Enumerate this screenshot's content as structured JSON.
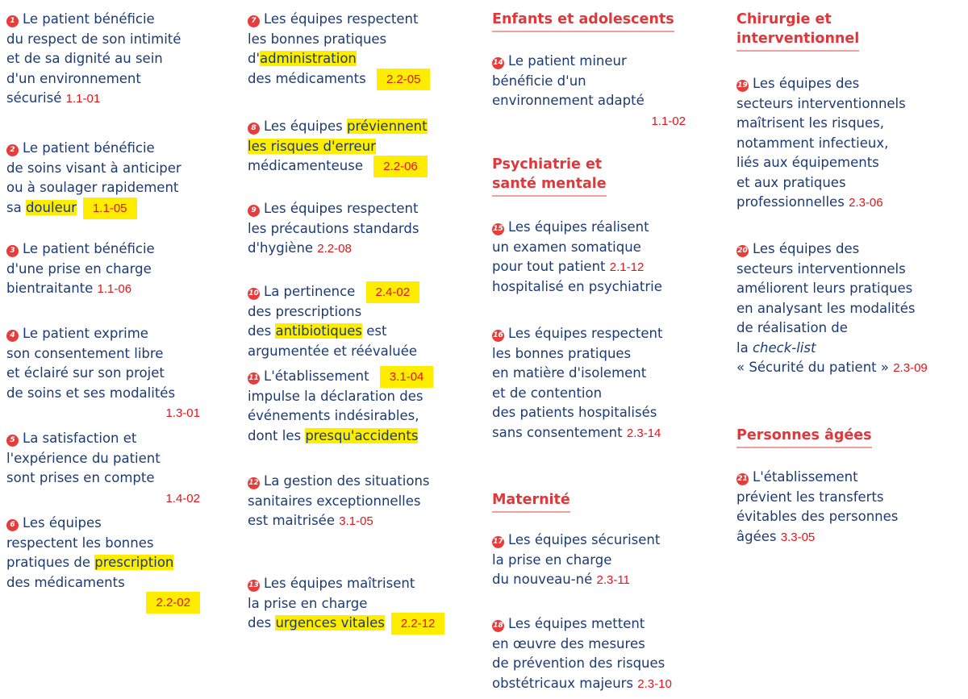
{
  "columns": [
    {
      "blocks": [
        {
          "number": "1",
          "lines": [
            [
              "Le patient bénéficie"
            ],
            [
              "du respect de son intimité"
            ],
            [
              "et de sa dignité au sein"
            ],
            [
              "d'un environnement"
            ],
            [
              "sécurisé ",
              {
                "text": "1.1-01",
                "style": "code"
              }
            ]
          ]
        },
        {
          "number": "2",
          "lines": [
            [
              "Le patient bénéficie"
            ],
            [
              "de soins visant à anticiper"
            ],
            [
              "ou à soulager rapidement"
            ],
            [
              "sa ",
              {
                "text": "douleur",
                "style": "hl"
              },
              {
                "text": "1.1-05",
                "style": "code-hl"
              }
            ]
          ]
        },
        {
          "number": "3",
          "lines": [
            [
              "Le patient bénéficie"
            ],
            [
              "d'une prise en charge"
            ],
            [
              "bientraitante ",
              {
                "text": "1.1-06",
                "style": "code"
              }
            ]
          ]
        },
        {
          "number": "4",
          "lines": [
            [
              "Le patient exprime"
            ],
            [
              "son consentement libre"
            ],
            [
              "et éclairé sur son projet"
            ],
            [
              "de soins et ses modalités"
            ],
            [
              {
                "text": "1.3-01",
                "style": "code"
              }
            ]
          ]
        },
        {
          "number": "5",
          "lines": [
            [
              "La satisfaction et"
            ],
            [
              "l'expérience du patient"
            ],
            [
              "sont prises en compte"
            ],
            [
              {
                "text": "1.4-02",
                "style": "code"
              }
            ]
          ]
        },
        {
          "number": "6",
          "lines": [
            [
              "Les équipes"
            ],
            [
              "respectent les bonnes"
            ],
            [
              "pratiques de ",
              {
                "text": "prescription",
                "style": "hl"
              }
            ],
            [
              "des médicaments"
            ],
            [
              {
                "text": "2.2-02",
                "style": "code-hl"
              }
            ]
          ]
        }
      ]
    },
    {
      "blocks": [
        {
          "number": "7",
          "lines": [
            [
              "Les équipes respectent"
            ],
            [
              "les bonnes pratiques"
            ],
            [
              "d'",
              {
                "text": "administration",
                "style": "hl"
              }
            ],
            [
              "des médicaments ",
              {
                "text": "2.2-05",
                "style": "code-hl"
              }
            ]
          ]
        },
        {
          "number": "8",
          "lines": [
            [
              "Les équipes ",
              {
                "text": "préviennent",
                "style": "hl"
              }
            ],
            [
              {
                "text": "les risques d'erreur",
                "style": "hl"
              }
            ],
            [
              "médicamenteuse ",
              {
                "text": "2.2-06",
                "style": "code-hl"
              }
            ]
          ]
        },
        {
          "number": "9",
          "lines": [
            [
              "Les équipes respectent"
            ],
            [
              "les précautions standards"
            ],
            [
              "d'hygiène ",
              {
                "text": "2.2-08",
                "style": "code"
              }
            ]
          ]
        },
        {
          "number": "10",
          "lines": [
            [
              "La pertinence ",
              {
                "text": "2.4-02",
                "style": "code-hl"
              }
            ],
            [
              "des prescriptions"
            ],
            [
              "des ",
              {
                "text": "antibiotiques",
                "style": "hl"
              },
              " est"
            ],
            [
              "argumentée et réévaluée"
            ]
          ]
        },
        {
          "number": "11",
          "lines": [
            [
              "L'établissement ",
              {
                "text": "3.1-04",
                "style": "code-hl"
              }
            ],
            [
              "impulse la déclaration des"
            ],
            [
              "événements indésirables,"
            ],
            [
              "dont les ",
              {
                "text": "presqu'accidents",
                "style": "hl"
              }
            ]
          ]
        },
        {
          "number": "12",
          "lines": [
            [
              "La gestion des situations"
            ],
            [
              "sanitaires exceptionnelles"
            ],
            [
              "est maitrisée ",
              {
                "text": "3.1-05",
                "style": "code"
              }
            ]
          ]
        },
        {
          "number": "13",
          "lines": [
            [
              "Les équipes maîtrisent"
            ],
            [
              "la prise en charge"
            ],
            [
              "des ",
              {
                "text": "urgences vitales",
                "style": "hl"
              },
              {
                "text": "2.2-12",
                "style": "code-hl"
              }
            ]
          ]
        }
      ]
    },
    {
      "blocks": [
        {
          "heading": [
            "Enfants et adolescents"
          ]
        },
        {
          "number": "14",
          "lines": [
            [
              "Le patient mineur"
            ],
            [
              "bénéficie d'un"
            ],
            [
              "environnement adapté"
            ],
            [
              {
                "text": "1.1-02",
                "style": "code"
              }
            ]
          ]
        },
        {
          "heading": [
            "Psychiatrie et",
            "santé mentale"
          ]
        },
        {
          "number": "15",
          "lines": [
            [
              "Les équipes réalisent"
            ],
            [
              "un examen somatique"
            ],
            [
              "pour tout patient ",
              {
                "text": "2.1-12",
                "style": "code"
              }
            ],
            [
              "hospitalisé en psychiatrie"
            ]
          ]
        },
        {
          "number": "16",
          "lines": [
            [
              "Les équipes respectent"
            ],
            [
              "les bonnes pratiques"
            ],
            [
              "en matière d'isolement"
            ],
            [
              "et de contention"
            ],
            [
              "des patients hospitalisés"
            ],
            [
              "sans consentement ",
              {
                "text": "2.3-14",
                "style": "code"
              }
            ]
          ]
        },
        {
          "heading": [
            "Maternité"
          ]
        },
        {
          "number": "17",
          "lines": [
            [
              "Les équipes sécurisent"
            ],
            [
              "la prise en charge"
            ],
            [
              "du nouveau-né ",
              {
                "text": "2.3-11",
                "style": "code"
              }
            ]
          ]
        },
        {
          "number": "18",
          "lines": [
            [
              "Les équipes mettent"
            ],
            [
              "en œuvre des mesures"
            ],
            [
              "de prévention des risques"
            ],
            [
              "obstétricaux majeurs ",
              {
                "text": "2.3-10",
                "style": "code"
              }
            ]
          ]
        }
      ]
    },
    {
      "blocks": [
        {
          "heading": [
            "Chirurgie et",
            "interventionnel"
          ]
        },
        {
          "number": "19",
          "lines": [
            [
              "Les équipes des"
            ],
            [
              "secteurs interventionnels"
            ],
            [
              "maîtrisent les risques,"
            ],
            [
              "notamment infectieux,"
            ],
            [
              "liés aux équipements"
            ],
            [
              "et aux pratiques"
            ],
            [
              "professionnelles ",
              {
                "text": "2.3-06",
                "style": "code"
              }
            ]
          ]
        },
        {
          "number": "20",
          "lines": [
            [
              "Les équipes des"
            ],
            [
              "secteurs interventionnels"
            ],
            [
              "améliorent leurs pratiques"
            ],
            [
              "en analysant les modalités"
            ],
            [
              "de réalisation de"
            ],
            [
              "la ",
              {
                "text": "check-list",
                "style": "italic"
              }
            ],
            [
              "« Sécurité du patient » ",
              {
                "text": "2.3-09",
                "style": "code"
              }
            ]
          ]
        },
        {
          "heading": [
            "Personnes âgées"
          ]
        },
        {
          "number": "21",
          "lines": [
            [
              "L'établissement"
            ],
            [
              "prévient les transferts"
            ],
            [
              "évitables des personnes"
            ],
            [
              "âgées ",
              {
                "text": "3.3-05",
                "style": "code"
              }
            ]
          ]
        }
      ]
    }
  ]
}
